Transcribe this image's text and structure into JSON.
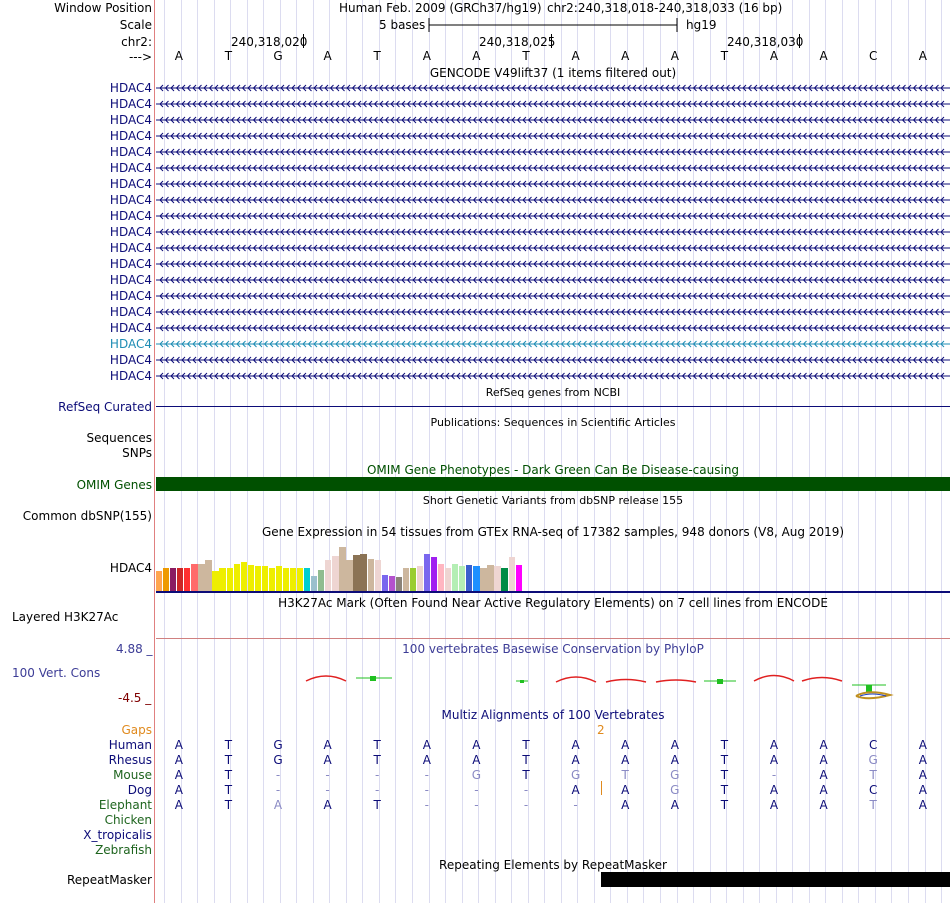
{
  "header": {
    "window_position_label": "Window Position",
    "assembly_text": "Human Feb. 2009 (GRCh37/hg19)",
    "position_text": "chr2:240,318,018-240,318,033 (16 bp)",
    "scale_label": "Scale",
    "scale_text": "5 bases",
    "scale_db": "hg19",
    "chrom_label": "chr2:",
    "ticks": [
      "240,318,020",
      "240,318,025",
      "240,318,030"
    ],
    "strand_label": "--->"
  },
  "base_sequence": [
    "A",
    "T",
    "G",
    "A",
    "T",
    "A",
    "A",
    "T",
    "A",
    "A",
    "A",
    "T",
    "A",
    "A",
    "C",
    "A"
  ],
  "gencode": {
    "title": "GENCODE V49lift37 (1 items filtered out)",
    "genes": [
      "HDAC4",
      "HDAC4",
      "HDAC4",
      "HDAC4",
      "HDAC4",
      "HDAC4",
      "HDAC4",
      "HDAC4",
      "HDAC4",
      "HDAC4",
      "HDAC4",
      "HDAC4",
      "HDAC4",
      "HDAC4",
      "HDAC4",
      "HDAC4",
      "HDAC4",
      "HDAC4",
      "HDAC4"
    ],
    "highlight_index": 16,
    "gene_color": "#0c0c78",
    "highlight_color": "#1e8cb4"
  },
  "refseq": {
    "title": "RefSeq genes from NCBI",
    "label": "RefSeq Curated",
    "color": "#0c0c78"
  },
  "publications": {
    "title": "Publications: Sequences in Scientific Articles",
    "labels": [
      "Sequences",
      "SNPs"
    ]
  },
  "omim": {
    "title": "OMIM Gene Phenotypes - Dark Green Can Be Disease-causing",
    "label": "OMIM Genes",
    "color": "#005000"
  },
  "dbsnp": {
    "title": "Short Genetic Variants from dbSNP release 155",
    "label": "Common dbSNP(155)"
  },
  "gtex": {
    "title": "Gene Expression in 54 tissues from GTEx RNA-seq of 17382 samples, 948 donors (V8, Aug 2019)",
    "label": "HDAC4",
    "bars": [
      {
        "h": 0.43,
        "c": "#ffa54f"
      },
      {
        "h": 0.49,
        "c": "#ee9a00"
      },
      {
        "h": 0.51,
        "c": "#8b1c62"
      },
      {
        "h": 0.51,
        "c": "#cd2626"
      },
      {
        "h": 0.49,
        "c": "#ff3030"
      },
      {
        "h": 0.59,
        "c": "#ff6a6a"
      },
      {
        "h": 0.59,
        "c": "#cdb79e"
      },
      {
        "h": 0.68,
        "c": "#cdb79e"
      },
      {
        "h": 0.43,
        "c": "#eeee00"
      },
      {
        "h": 0.49,
        "c": "#eeee00"
      },
      {
        "h": 0.51,
        "c": "#eeee00"
      },
      {
        "h": 0.59,
        "c": "#eeee00"
      },
      {
        "h": 0.62,
        "c": "#eeee00"
      },
      {
        "h": 0.57,
        "c": "#eeee00"
      },
      {
        "h": 0.54,
        "c": "#eeee00"
      },
      {
        "h": 0.54,
        "c": "#eeee00"
      },
      {
        "h": 0.49,
        "c": "#eeee00"
      },
      {
        "h": 0.54,
        "c": "#eeee00"
      },
      {
        "h": 0.49,
        "c": "#eeee00"
      },
      {
        "h": 0.49,
        "c": "#eeee00"
      },
      {
        "h": 0.49,
        "c": "#eeee00"
      },
      {
        "h": 0.49,
        "c": "#00ced1"
      },
      {
        "h": 0.32,
        "c": "#9ac0cd"
      },
      {
        "h": 0.46,
        "c": "#8fbc8f"
      },
      {
        "h": 0.68,
        "c": "#eed5d2"
      },
      {
        "h": 0.76,
        "c": "#eed5d2"
      },
      {
        "h": 0.95,
        "c": "#cdb79e"
      },
      {
        "h": 0.68,
        "c": "#cdb79e"
      },
      {
        "h": 0.78,
        "c": "#8b7355"
      },
      {
        "h": 0.81,
        "c": "#8b7355"
      },
      {
        "h": 0.7,
        "c": "#cdb79e"
      },
      {
        "h": 0.68,
        "c": "#eed5d2"
      },
      {
        "h": 0.35,
        "c": "#7a67ee"
      },
      {
        "h": 0.32,
        "c": "#b452cd"
      },
      {
        "h": 0.3,
        "c": "#8b8378"
      },
      {
        "h": 0.49,
        "c": "#cdb79e"
      },
      {
        "h": 0.49,
        "c": "#9acd32"
      },
      {
        "h": 0.54,
        "c": "#eed5d2"
      },
      {
        "h": 0.81,
        "c": "#7a67ee"
      },
      {
        "h": 0.73,
        "c": "#a020f0"
      },
      {
        "h": 0.59,
        "c": "#ffb6c1"
      },
      {
        "h": 0.49,
        "c": "#eed5d2"
      },
      {
        "h": 0.59,
        "c": "#b4eeb4"
      },
      {
        "h": 0.54,
        "c": "#b4eeb4"
      },
      {
        "h": 0.57,
        "c": "#3a5fcd"
      },
      {
        "h": 0.54,
        "c": "#1e90ff"
      },
      {
        "h": 0.49,
        "c": "#cdb79e"
      },
      {
        "h": 0.57,
        "c": "#cdb79e"
      },
      {
        "h": 0.54,
        "c": "#eed5d2"
      },
      {
        "h": 0.49,
        "c": "#008b45"
      },
      {
        "h": 0.73,
        "c": "#eed5d2"
      },
      {
        "h": 0.57,
        "c": "#ff00ff"
      }
    ]
  },
  "h3k27ac": {
    "title": "H3K27Ac Mark (Often Found Near Active Regulatory Elements) on 7 cell lines from ENCODE",
    "label": "Layered H3K27Ac"
  },
  "phylop": {
    "title": "100 vertebrates Basewise Conservation by PhyloP",
    "label": "100 Vert. Cons",
    "max": "4.88 _",
    "min": "-4.5 _",
    "label_color": "#3c3c96",
    "min_color": "#800000"
  },
  "multiz": {
    "title": "Multiz Alignments of 100 Vertebrates",
    "gaps_label": "Gaps",
    "gap_marker": "2",
    "gap_color": "#e08a1e",
    "species": [
      {
        "name": "Human",
        "color": "#0c0c78",
        "seq": [
          "A",
          "T",
          "G",
          "A",
          "T",
          "A",
          "A",
          "T",
          "A",
          "A",
          "A",
          "T",
          "A",
          "A",
          "C",
          "A"
        ],
        "faint": []
      },
      {
        "name": "Rhesus",
        "color": "#0c0c78",
        "seq": [
          "A",
          "T",
          "G",
          "A",
          "T",
          "A",
          "A",
          "T",
          "A",
          "A",
          "A",
          "T",
          "A",
          "A",
          "G",
          "A"
        ],
        "faint": [
          14
        ]
      },
      {
        "name": "Mouse",
        "color": "#1e641e",
        "seq": [
          "A",
          "T",
          "-",
          "-",
          "-",
          "-",
          "G",
          "T",
          "G",
          "T",
          "G",
          "T",
          "-",
          "A",
          "T",
          "A"
        ],
        "faint": [
          2,
          3,
          4,
          5,
          6,
          8,
          9,
          10,
          12,
          14
        ]
      },
      {
        "name": "Dog",
        "color": "#0c0c78",
        "seq": [
          "A",
          "T",
          "-",
          "-",
          "-",
          "-",
          "-",
          "-",
          "A",
          "A",
          "G",
          "T",
          "A",
          "A",
          "C",
          "A"
        ],
        "faint": [
          2,
          3,
          4,
          5,
          6,
          7,
          10
        ]
      },
      {
        "name": "Elephant",
        "color": "#1e641e",
        "seq": [
          "A",
          "T",
          "A",
          "A",
          "T",
          "-",
          "-",
          "-",
          "-",
          "A",
          "A",
          "T",
          "A",
          "A",
          "T",
          "A"
        ],
        "faint": [
          2,
          5,
          6,
          7,
          8,
          14
        ]
      },
      {
        "name": "Chicken",
        "color": "#1e641e",
        "seq": [],
        "faint": []
      },
      {
        "name": "X_tropicalis",
        "color": "#0c0c78",
        "seq": [],
        "faint": []
      },
      {
        "name": "Zebrafish",
        "color": "#1e641e",
        "seq": [],
        "faint": []
      }
    ]
  },
  "repeatmasker": {
    "title": "Repeating Elements by RepeatMasker",
    "label": "RepeatMasker"
  }
}
